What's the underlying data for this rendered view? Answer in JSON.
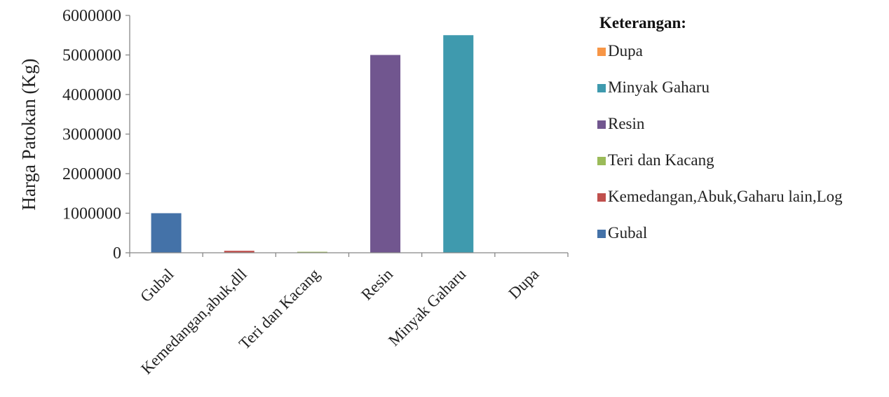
{
  "chart_data": {
    "type": "bar",
    "title": "",
    "xlabel": "",
    "ylabel": "Harga Patokan (Kg)",
    "ylim": [
      0,
      6000000
    ],
    "yticks": [
      0,
      1000000,
      2000000,
      3000000,
      4000000,
      5000000,
      6000000
    ],
    "ytick_labels": [
      "0",
      "1000000",
      "2000000",
      "3000000",
      "4000000",
      "5000000",
      "6000000"
    ],
    "grid": false,
    "categories": [
      "Gubal",
      "Kemedangan,abuk,dll",
      "Teri dan Kacang",
      "Resin",
      "Minyak Gaharu",
      "Dupa"
    ],
    "values": [
      1000000,
      50000,
      25000,
      5000000,
      5500000,
      0
    ],
    "colors": [
      "#4472A8",
      "#C0504D",
      "#9BBB59",
      "#71568F",
      "#3F9AAE",
      "#F79646"
    ],
    "legend": {
      "placement": "right",
      "title": "Keterangan:",
      "entries": [
        {
          "label": "Dupa",
          "color": "#F79646"
        },
        {
          "label": "Minyak Gaharu",
          "color": "#3F9AAE"
        },
        {
          "label": "Resin",
          "color": "#71568F"
        },
        {
          "label": "Teri dan Kacang",
          "color": "#9BBB59"
        },
        {
          "label": "Kemedangan,Abuk,Gaharu lain,Log",
          "color": "#C0504D"
        },
        {
          "label": "Gubal",
          "color": "#4472A8"
        }
      ]
    }
  }
}
